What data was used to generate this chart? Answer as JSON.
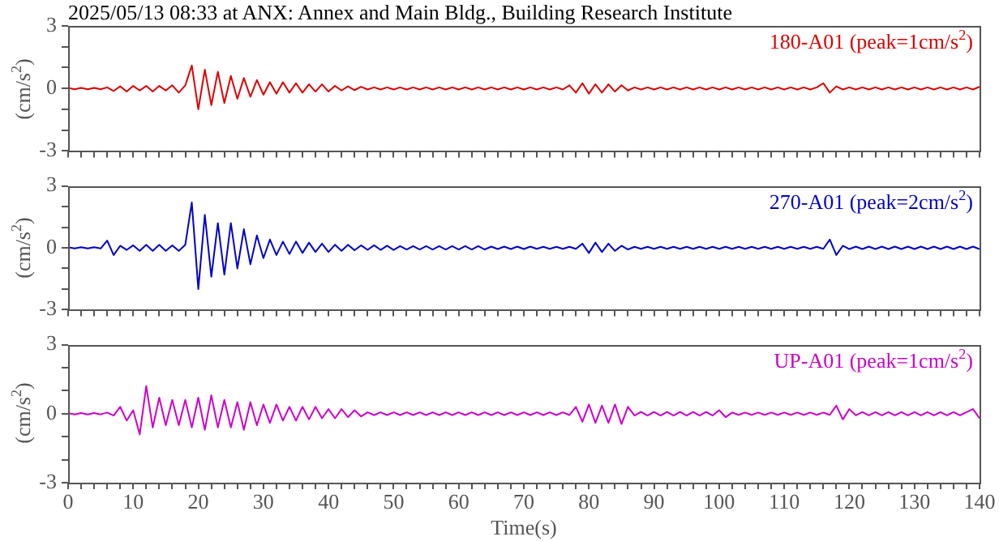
{
  "chart_data": [
    {
      "type": "line",
      "title": "2025/05/13 08:33 at ANX: Annex and Main Bldg., Building Research Institute",
      "ylabel": "(cm/s$^{2}$)",
      "tick_labels": "y",
      "x": [
        0,
        1,
        2,
        3,
        4,
        5,
        6,
        7,
        8,
        9,
        10,
        11,
        12,
        13,
        14,
        15,
        16,
        17,
        18,
        19,
        20,
        21,
        22,
        23,
        24,
        25,
        26,
        27,
        28,
        29,
        30,
        31,
        32,
        33,
        34,
        35,
        36,
        37,
        38,
        39,
        40,
        41,
        42,
        43,
        44,
        45,
        46,
        47,
        48,
        49,
        50,
        51,
        52,
        53,
        54,
        55,
        56,
        57,
        58,
        59,
        60,
        61,
        62,
        63,
        64,
        65,
        66,
        67,
        68,
        69,
        70,
        71,
        72,
        73,
        74,
        75,
        76,
        77,
        78,
        79,
        80,
        81,
        82,
        83,
        84,
        85,
        86,
        87,
        88,
        89,
        90,
        91,
        92,
        93,
        94,
        95,
        96,
        97,
        98,
        99,
        100,
        101,
        102,
        103,
        104,
        105,
        106,
        107,
        108,
        109,
        110,
        111,
        112,
        113,
        114,
        115,
        116,
        117,
        118,
        119,
        120,
        121,
        122,
        123,
        124,
        125,
        126,
        127,
        128,
        129,
        130,
        131,
        132,
        133,
        134,
        135,
        136,
        137,
        138,
        139,
        140
      ],
      "xlim": [
        0,
        140
      ],
      "xticks": [
        0,
        {
          "value": 2,
          "label": null
        },
        {
          "value": 4,
          "label": null
        },
        {
          "value": 6,
          "label": null
        },
        {
          "value": 8,
          "label": null
        },
        10,
        {
          "value": 12,
          "label": null
        },
        {
          "value": 14,
          "label": null
        },
        {
          "value": 16,
          "label": null
        },
        {
          "value": 18,
          "label": null
        },
        20,
        {
          "value": 22,
          "label": null
        },
        {
          "value": 24,
          "label": null
        },
        {
          "value": 26,
          "label": null
        },
        {
          "value": 28,
          "label": null
        },
        30,
        {
          "value": 32,
          "label": null
        },
        {
          "value": 34,
          "label": null
        },
        {
          "value": 36,
          "label": null
        },
        {
          "value": 38,
          "label": null
        },
        40,
        {
          "value": 42,
          "label": null
        },
        {
          "value": 44,
          "label": null
        },
        {
          "value": 46,
          "label": null
        },
        {
          "value": 48,
          "label": null
        },
        50,
        {
          "value": 52,
          "label": null
        },
        {
          "value": 54,
          "label": null
        },
        {
          "value": 56,
          "label": null
        },
        {
          "value": 58,
          "label": null
        },
        60,
        {
          "value": 62,
          "label": null
        },
        {
          "value": 64,
          "label": null
        },
        {
          "value": 66,
          "label": null
        },
        {
          "value": 68,
          "label": null
        },
        70,
        {
          "value": 72,
          "label": null
        },
        {
          "value": 74,
          "label": null
        },
        {
          "value": 76,
          "label": null
        },
        {
          "value": 78,
          "label": null
        },
        80,
        {
          "value": 82,
          "label": null
        },
        {
          "value": 84,
          "label": null
        },
        {
          "value": 86,
          "label": null
        },
        {
          "value": 88,
          "label": null
        },
        90,
        {
          "value": 92,
          "label": null
        },
        {
          "value": 94,
          "label": null
        },
        {
          "value": 96,
          "label": null
        },
        {
          "value": 98,
          "label": null
        },
        100,
        {
          "value": 102,
          "label": null
        },
        {
          "value": 104,
          "label": null
        },
        {
          "value": 106,
          "label": null
        },
        {
          "value": 108,
          "label": null
        },
        110,
        {
          "value": 112,
          "label": null
        },
        {
          "value": 114,
          "label": null
        },
        {
          "value": 116,
          "label": null
        },
        {
          "value": 118,
          "label": null
        },
        120,
        {
          "value": 122,
          "label": null
        },
        {
          "value": 124,
          "label": null
        },
        {
          "value": 126,
          "label": null
        },
        {
          "value": 128,
          "label": null
        },
        130,
        {
          "value": 132,
          "label": null
        },
        {
          "value": 134,
          "label": null
        },
        {
          "value": 136,
          "label": null
        },
        {
          "value": 138,
          "label": null
        },
        140
      ],
      "ylim": [
        -3,
        3
      ],
      "yticks": [
        -3,
        {
          "value": -2,
          "label": null
        },
        {
          "value": -1,
          "label": null
        },
        0,
        {
          "value": 1,
          "label": null
        },
        {
          "value": 2,
          "label": null
        },
        3
      ],
      "series": [
        {
          "name": "180-A01 (peak=1cm/s$^{2}$)",
          "color": "#dd0000",
          "values": [
            0.03,
            -0.04,
            0.03,
            -0.04,
            0.03,
            -0.04,
            0.05,
            -0.12,
            0.1,
            -0.15,
            0.12,
            -0.1,
            0.12,
            -0.15,
            0.12,
            -0.1,
            0.15,
            -0.2,
            0.15,
            1.1,
            -1.0,
            0.9,
            -0.8,
            0.8,
            -0.7,
            0.6,
            -0.5,
            0.5,
            -0.4,
            0.4,
            -0.3,
            0.3,
            -0.25,
            0.3,
            -0.2,
            0.25,
            -0.2,
            0.2,
            -0.15,
            0.2,
            -0.15,
            0.12,
            -0.1,
            0.1,
            -0.08,
            0.08,
            -0.05,
            0.05,
            -0.05,
            0.05,
            -0.05,
            0.05,
            -0.05,
            0.05,
            -0.05,
            0.05,
            -0.05,
            0.05,
            -0.05,
            0.05,
            -0.05,
            0.05,
            -0.05,
            0.05,
            -0.05,
            0.05,
            -0.05,
            0.05,
            -0.05,
            0.05,
            -0.05,
            0.05,
            -0.05,
            0.05,
            -0.05,
            0.05,
            -0.05,
            0.15,
            -0.2,
            0.25,
            -0.25,
            0.2,
            -0.2,
            0.2,
            -0.15,
            0.15,
            -0.1,
            0.05,
            -0.05,
            0.05,
            -0.05,
            0.05,
            -0.05,
            0.05,
            -0.05,
            0.05,
            -0.05,
            0.05,
            -0.05,
            0.05,
            -0.05,
            0.05,
            -0.05,
            0.05,
            -0.05,
            0.05,
            -0.05,
            0.05,
            -0.05,
            0.05,
            -0.05,
            0.05,
            -0.05,
            0.05,
            -0.05,
            0.05,
            0.25,
            -0.2,
            0.1,
            -0.05,
            0.05,
            -0.05,
            0.05,
            -0.05,
            0.05,
            -0.05,
            0.05,
            -0.05,
            0.05,
            -0.05,
            0.05,
            -0.05,
            0.05,
            -0.05,
            0.05,
            -0.05,
            0.05,
            -0.05,
            0.05,
            -0.05,
            0.08
          ]
        }
      ]
    },
    {
      "type": "line",
      "ylabel": "(cm/s$^{2}$)",
      "tick_labels": "y",
      "x": [
        0,
        1,
        2,
        3,
        4,
        5,
        6,
        7,
        8,
        9,
        10,
        11,
        12,
        13,
        14,
        15,
        16,
        17,
        18,
        19,
        20,
        21,
        22,
        23,
        24,
        25,
        26,
        27,
        28,
        29,
        30,
        31,
        32,
        33,
        34,
        35,
        36,
        37,
        38,
        39,
        40,
        41,
        42,
        43,
        44,
        45,
        46,
        47,
        48,
        49,
        50,
        51,
        52,
        53,
        54,
        55,
        56,
        57,
        58,
        59,
        60,
        61,
        62,
        63,
        64,
        65,
        66,
        67,
        68,
        69,
        70,
        71,
        72,
        73,
        74,
        75,
        76,
        77,
        78,
        79,
        80,
        81,
        82,
        83,
        84,
        85,
        86,
        87,
        88,
        89,
        90,
        91,
        92,
        93,
        94,
        95,
        96,
        97,
        98,
        99,
        100,
        101,
        102,
        103,
        104,
        105,
        106,
        107,
        108,
        109,
        110,
        111,
        112,
        113,
        114,
        115,
        116,
        117,
        118,
        119,
        120,
        121,
        122,
        123,
        124,
        125,
        126,
        127,
        128,
        129,
        130,
        131,
        132,
        133,
        134,
        135,
        136,
        137,
        138,
        139,
        140
      ],
      "xlim": [
        0,
        140
      ],
      "xticks": [
        0,
        {
          "value": 2,
          "label": null
        },
        {
          "value": 4,
          "label": null
        },
        {
          "value": 6,
          "label": null
        },
        {
          "value": 8,
          "label": null
        },
        10,
        {
          "value": 12,
          "label": null
        },
        {
          "value": 14,
          "label": null
        },
        {
          "value": 16,
          "label": null
        },
        {
          "value": 18,
          "label": null
        },
        20,
        {
          "value": 22,
          "label": null
        },
        {
          "value": 24,
          "label": null
        },
        {
          "value": 26,
          "label": null
        },
        {
          "value": 28,
          "label": null
        },
        30,
        {
          "value": 32,
          "label": null
        },
        {
          "value": 34,
          "label": null
        },
        {
          "value": 36,
          "label": null
        },
        {
          "value": 38,
          "label": null
        },
        40,
        {
          "value": 42,
          "label": null
        },
        {
          "value": 44,
          "label": null
        },
        {
          "value": 46,
          "label": null
        },
        {
          "value": 48,
          "label": null
        },
        50,
        {
          "value": 52,
          "label": null
        },
        {
          "value": 54,
          "label": null
        },
        {
          "value": 56,
          "label": null
        },
        {
          "value": 58,
          "label": null
        },
        60,
        {
          "value": 62,
          "label": null
        },
        {
          "value": 64,
          "label": null
        },
        {
          "value": 66,
          "label": null
        },
        {
          "value": 68,
          "label": null
        },
        70,
        {
          "value": 72,
          "label": null
        },
        {
          "value": 74,
          "label": null
        },
        {
          "value": 76,
          "label": null
        },
        {
          "value": 78,
          "label": null
        },
        80,
        {
          "value": 82,
          "label": null
        },
        {
          "value": 84,
          "label": null
        },
        {
          "value": 86,
          "label": null
        },
        {
          "value": 88,
          "label": null
        },
        90,
        {
          "value": 92,
          "label": null
        },
        {
          "value": 94,
          "label": null
        },
        {
          "value": 96,
          "label": null
        },
        {
          "value": 98,
          "label": null
        },
        100,
        {
          "value": 102,
          "label": null
        },
        {
          "value": 104,
          "label": null
        },
        {
          "value": 106,
          "label": null
        },
        {
          "value": 108,
          "label": null
        },
        110,
        {
          "value": 112,
          "label": null
        },
        {
          "value": 114,
          "label": null
        },
        {
          "value": 116,
          "label": null
        },
        {
          "value": 118,
          "label": null
        },
        120,
        {
          "value": 122,
          "label": null
        },
        {
          "value": 124,
          "label": null
        },
        {
          "value": 126,
          "label": null
        },
        {
          "value": 128,
          "label": null
        },
        130,
        {
          "value": 132,
          "label": null
        },
        {
          "value": 134,
          "label": null
        },
        {
          "value": 136,
          "label": null
        },
        {
          "value": 138,
          "label": null
        },
        140
      ],
      "ylim": [
        -3,
        3
      ],
      "yticks": [
        -3,
        {
          "value": -2,
          "label": null
        },
        {
          "value": -1,
          "label": null
        },
        0,
        {
          "value": 1,
          "label": null
        },
        {
          "value": 2,
          "label": null
        },
        3
      ],
      "series": [
        {
          "name": "270-A01 (peak=2cm/s$^{2}$)",
          "color": "#0000cc",
          "values": [
            0.03,
            -0.03,
            0.03,
            -0.03,
            0.03,
            -0.03,
            0.35,
            -0.35,
            0.1,
            -0.1,
            0.12,
            -0.15,
            0.15,
            -0.15,
            0.15,
            -0.15,
            0.12,
            -0.15,
            0.15,
            2.2,
            -2.0,
            1.6,
            -1.4,
            1.2,
            -1.3,
            1.2,
            -1.0,
            0.9,
            -0.8,
            0.6,
            -0.5,
            0.4,
            -0.35,
            0.3,
            -0.3,
            0.3,
            -0.25,
            0.25,
            -0.2,
            0.2,
            -0.2,
            0.15,
            -0.15,
            0.15,
            -0.12,
            0.12,
            -0.1,
            0.12,
            -0.1,
            0.1,
            -0.1,
            0.08,
            -0.08,
            0.08,
            -0.08,
            0.08,
            -0.08,
            0.08,
            -0.08,
            0.08,
            -0.08,
            0.08,
            -0.08,
            0.08,
            -0.08,
            0.06,
            -0.06,
            0.06,
            -0.06,
            0.06,
            -0.06,
            0.06,
            -0.05,
            0.05,
            -0.05,
            0.05,
            -0.05,
            0.05,
            -0.05,
            0.2,
            -0.25,
            0.25,
            -0.2,
            0.2,
            -0.15,
            0.1,
            -0.08,
            0.05,
            -0.05,
            0.05,
            -0.05,
            0.05,
            -0.05,
            0.05,
            -0.05,
            0.05,
            -0.05,
            0.05,
            -0.05,
            0.05,
            -0.05,
            0.05,
            -0.05,
            0.05,
            -0.05,
            0.05,
            -0.05,
            0.05,
            -0.05,
            0.05,
            -0.05,
            0.05,
            -0.05,
            0.05,
            -0.05,
            0.05,
            -0.05,
            0.4,
            -0.35,
            0.1,
            -0.06,
            0.06,
            -0.06,
            0.06,
            -0.06,
            0.06,
            -0.06,
            0.06,
            -0.06,
            0.06,
            -0.06,
            0.06,
            -0.06,
            0.06,
            -0.06,
            0.06,
            -0.06,
            0.06,
            -0.06,
            0.06,
            -0.06
          ]
        }
      ]
    },
    {
      "type": "line",
      "xlabel": "Time(s)",
      "ylabel": "(cm/s$^{2}$)",
      "x": [
        0,
        1,
        2,
        3,
        4,
        5,
        6,
        7,
        8,
        9,
        10,
        11,
        12,
        13,
        14,
        15,
        16,
        17,
        18,
        19,
        20,
        21,
        22,
        23,
        24,
        25,
        26,
        27,
        28,
        29,
        30,
        31,
        32,
        33,
        34,
        35,
        36,
        37,
        38,
        39,
        40,
        41,
        42,
        43,
        44,
        45,
        46,
        47,
        48,
        49,
        50,
        51,
        52,
        53,
        54,
        55,
        56,
        57,
        58,
        59,
        60,
        61,
        62,
        63,
        64,
        65,
        66,
        67,
        68,
        69,
        70,
        71,
        72,
        73,
        74,
        75,
        76,
        77,
        78,
        79,
        80,
        81,
        82,
        83,
        84,
        85,
        86,
        87,
        88,
        89,
        90,
        91,
        92,
        93,
        94,
        95,
        96,
        97,
        98,
        99,
        100,
        101,
        102,
        103,
        104,
        105,
        106,
        107,
        108,
        109,
        110,
        111,
        112,
        113,
        114,
        115,
        116,
        117,
        118,
        119,
        120,
        121,
        122,
        123,
        124,
        125,
        126,
        127,
        128,
        129,
        130,
        131,
        132,
        133,
        134,
        135,
        136,
        137,
        138,
        139,
        140
      ],
      "xlim": [
        0,
        140
      ],
      "xticks": [
        0,
        {
          "value": 2,
          "label": null
        },
        {
          "value": 4,
          "label": null
        },
        {
          "value": 6,
          "label": null
        },
        {
          "value": 8,
          "label": null
        },
        10,
        {
          "value": 12,
          "label": null
        },
        {
          "value": 14,
          "label": null
        },
        {
          "value": 16,
          "label": null
        },
        {
          "value": 18,
          "label": null
        },
        20,
        {
          "value": 22,
          "label": null
        },
        {
          "value": 24,
          "label": null
        },
        {
          "value": 26,
          "label": null
        },
        {
          "value": 28,
          "label": null
        },
        30,
        {
          "value": 32,
          "label": null
        },
        {
          "value": 34,
          "label": null
        },
        {
          "value": 36,
          "label": null
        },
        {
          "value": 38,
          "label": null
        },
        40,
        {
          "value": 42,
          "label": null
        },
        {
          "value": 44,
          "label": null
        },
        {
          "value": 46,
          "label": null
        },
        {
          "value": 48,
          "label": null
        },
        50,
        {
          "value": 52,
          "label": null
        },
        {
          "value": 54,
          "label": null
        },
        {
          "value": 56,
          "label": null
        },
        {
          "value": 58,
          "label": null
        },
        60,
        {
          "value": 62,
          "label": null
        },
        {
          "value": 64,
          "label": null
        },
        {
          "value": 66,
          "label": null
        },
        {
          "value": 68,
          "label": null
        },
        70,
        {
          "value": 72,
          "label": null
        },
        {
          "value": 74,
          "label": null
        },
        {
          "value": 76,
          "label": null
        },
        {
          "value": 78,
          "label": null
        },
        80,
        {
          "value": 82,
          "label": null
        },
        {
          "value": 84,
          "label": null
        },
        {
          "value": 86,
          "label": null
        },
        {
          "value": 88,
          "label": null
        },
        90,
        {
          "value": 92,
          "label": null
        },
        {
          "value": 94,
          "label": null
        },
        {
          "value": 96,
          "label": null
        },
        {
          "value": 98,
          "label": null
        },
        100,
        {
          "value": 102,
          "label": null
        },
        {
          "value": 104,
          "label": null
        },
        {
          "value": 106,
          "label": null
        },
        {
          "value": 108,
          "label": null
        },
        110,
        {
          "value": 112,
          "label": null
        },
        {
          "value": 114,
          "label": null
        },
        {
          "value": 116,
          "label": null
        },
        {
          "value": 118,
          "label": null
        },
        120,
        {
          "value": 122,
          "label": null
        },
        {
          "value": 124,
          "label": null
        },
        {
          "value": 126,
          "label": null
        },
        {
          "value": 128,
          "label": null
        },
        130,
        {
          "value": 132,
          "label": null
        },
        {
          "value": 134,
          "label": null
        },
        {
          "value": 136,
          "label": null
        },
        {
          "value": 138,
          "label": null
        },
        140
      ],
      "ylim": [
        -3,
        3
      ],
      "yticks": [
        -3,
        {
          "value": -2,
          "label": null
        },
        {
          "value": -1,
          "label": null
        },
        0,
        {
          "value": 1,
          "label": null
        },
        {
          "value": 2,
          "label": null
        },
        3
      ],
      "series": [
        {
          "name": "UP-A01 (peak=1cm/s$^{2}$)",
          "color": "#cc00cc",
          "values": [
            0.03,
            -0.03,
            0.03,
            -0.03,
            0.03,
            -0.03,
            0.05,
            -0.08,
            0.3,
            -0.3,
            0.15,
            -0.9,
            1.2,
            -0.6,
            0.7,
            -0.5,
            0.6,
            -0.5,
            0.6,
            -0.6,
            0.7,
            -0.7,
            0.8,
            -0.6,
            0.6,
            -0.6,
            0.5,
            -0.7,
            0.5,
            -0.5,
            0.4,
            -0.4,
            0.4,
            -0.3,
            0.3,
            -0.3,
            0.3,
            -0.25,
            0.3,
            -0.2,
            0.2,
            -0.2,
            0.2,
            -0.15,
            0.15,
            -0.12,
            0.06,
            -0.06,
            0.06,
            -0.06,
            0.06,
            -0.06,
            0.06,
            -0.06,
            0.06,
            -0.06,
            0.06,
            -0.06,
            0.06,
            -0.06,
            0.06,
            -0.06,
            0.06,
            -0.06,
            0.06,
            -0.06,
            0.06,
            -0.06,
            0.06,
            -0.06,
            0.06,
            -0.06,
            0.06,
            -0.06,
            0.06,
            -0.06,
            0.06,
            -0.06,
            0.3,
            -0.35,
            0.4,
            -0.4,
            0.35,
            -0.4,
            0.4,
            -0.45,
            0.3,
            -0.08,
            0.08,
            -0.08,
            0.08,
            -0.08,
            0.08,
            -0.08,
            0.08,
            -0.08,
            0.08,
            -0.08,
            0.08,
            -0.08,
            0.15,
            -0.15,
            0.05,
            -0.05,
            0.05,
            -0.05,
            0.05,
            -0.05,
            0.05,
            -0.05,
            0.05,
            -0.05,
            0.05,
            -0.05,
            0.05,
            -0.05,
            0.05,
            -0.05,
            0.35,
            -0.25,
            0.2,
            -0.07,
            0.07,
            -0.07,
            0.07,
            -0.07,
            0.07,
            -0.07,
            0.07,
            -0.07,
            0.07,
            -0.07,
            0.07,
            -0.07,
            0.07,
            -0.07,
            0.07,
            -0.07,
            0.07,
            0.2,
            -0.2
          ]
        }
      ]
    }
  ]
}
